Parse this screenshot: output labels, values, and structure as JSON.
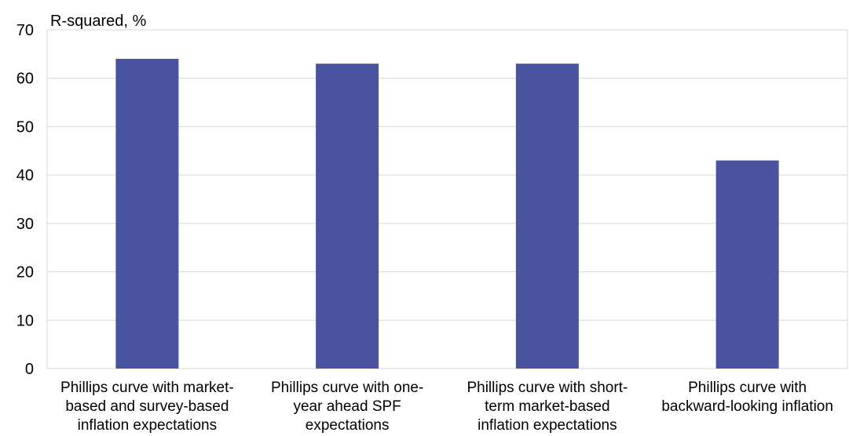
{
  "chart_data": {
    "type": "bar",
    "ylabel": "R-squared, %",
    "ylim": [
      0,
      70
    ],
    "yticks": [
      0,
      10,
      20,
      30,
      40,
      50,
      60,
      70
    ],
    "grid": true,
    "categories": [
      [
        "Phillips curve with market-",
        "based and survey-based",
        "inflation expectations"
      ],
      [
        "Phillips curve with one-",
        "year ahead SPF",
        "expectations"
      ],
      [
        "Phillips curve with short-",
        "term market-based",
        "inflation expectations"
      ],
      [
        "Phillips curve with",
        "backward-looking inflation"
      ]
    ],
    "values": [
      64,
      63,
      63,
      43
    ],
    "colors": {
      "bar": "#4a539f",
      "grid": "#d9d9d9",
      "frame": "#d9d9d9"
    }
  }
}
